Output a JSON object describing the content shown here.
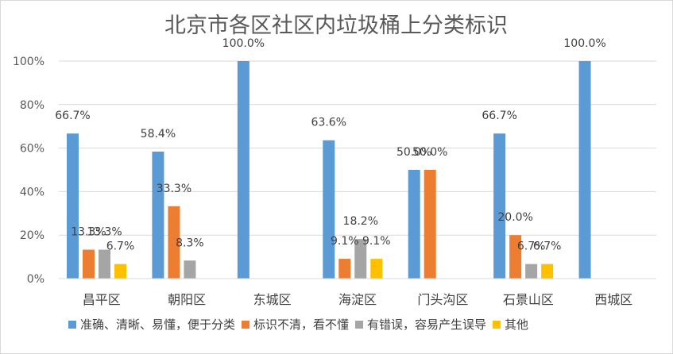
{
  "chart_data": {
    "type": "bar",
    "title": "北京市各区社区内垃圾桶上分类标识",
    "xlabel": "",
    "ylabel": "",
    "ylim": [
      0,
      100
    ],
    "y_ticks": [
      "0%",
      "20%",
      "40%",
      "60%",
      "80%",
      "100%"
    ],
    "grid": true,
    "legend_position": "bottom",
    "categories": [
      "昌平区",
      "朝阳区",
      "东城区",
      "海淀区",
      "门头沟区",
      "石景山区",
      "西城区"
    ],
    "series": [
      {
        "name": "准确、清晰、易懂，便于分类",
        "color": "#5B9BD5",
        "values": [
          66.7,
          58.4,
          100.0,
          63.6,
          50.0,
          66.7,
          100.0
        ],
        "labels": [
          "66.7%",
          "58.4%",
          "100.0%",
          "63.6%",
          "50.0%",
          "66.7%",
          "100.0%"
        ]
      },
      {
        "name": "标识不清，看不懂",
        "color": "#ED7D31",
        "values": [
          13.3,
          33.3,
          null,
          9.1,
          50.0,
          20.0,
          null
        ],
        "labels": [
          "13.3%",
          "33.3%",
          "",
          "9.1%",
          "50.0%",
          "20.0%",
          ""
        ]
      },
      {
        "name": "有错误，容易产生误导",
        "color": "#A5A5A5",
        "values": [
          13.3,
          8.3,
          null,
          18.2,
          null,
          6.7,
          null
        ],
        "labels": [
          "13.3%",
          "8.3%",
          "",
          "18.2%",
          "",
          "6.7%",
          ""
        ]
      },
      {
        "name": "其他",
        "color": "#FFC000",
        "values": [
          6.7,
          null,
          null,
          9.1,
          null,
          6.7,
          null
        ],
        "labels": [
          "6.7%",
          "",
          "",
          "9.1%",
          "",
          "6.7%",
          ""
        ]
      }
    ]
  }
}
